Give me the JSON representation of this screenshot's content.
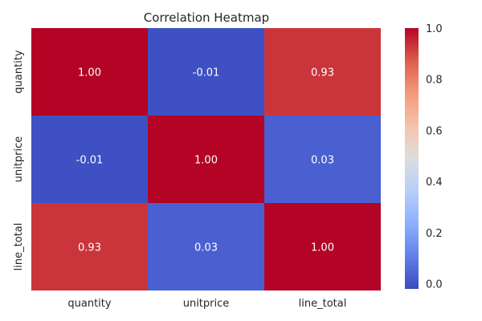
{
  "chart_data": {
    "type": "heatmap",
    "title": "Correlation Heatmap",
    "x_labels": [
      "quantity",
      "unitprice",
      "line_total"
    ],
    "y_labels": [
      "quantity",
      "unitprice",
      "line_total"
    ],
    "values": [
      [
        1.0,
        -0.01,
        0.93
      ],
      [
        -0.01,
        1.0,
        0.03
      ],
      [
        0.93,
        0.03,
        1.0
      ]
    ],
    "value_format": "2dp",
    "colormap": "coolwarm",
    "colorbar": {
      "range": [
        -0.02,
        1.0
      ],
      "ticks": [
        0.0,
        0.2,
        0.4,
        0.6,
        0.8,
        1.0
      ],
      "tick_labels": [
        "0.0",
        "0.2",
        "0.4",
        "0.6",
        "0.8",
        "1.0"
      ]
    },
    "colors": {
      "high": "#b40426",
      "low": "#3b4cc0",
      "mid": "#dddddd"
    }
  }
}
